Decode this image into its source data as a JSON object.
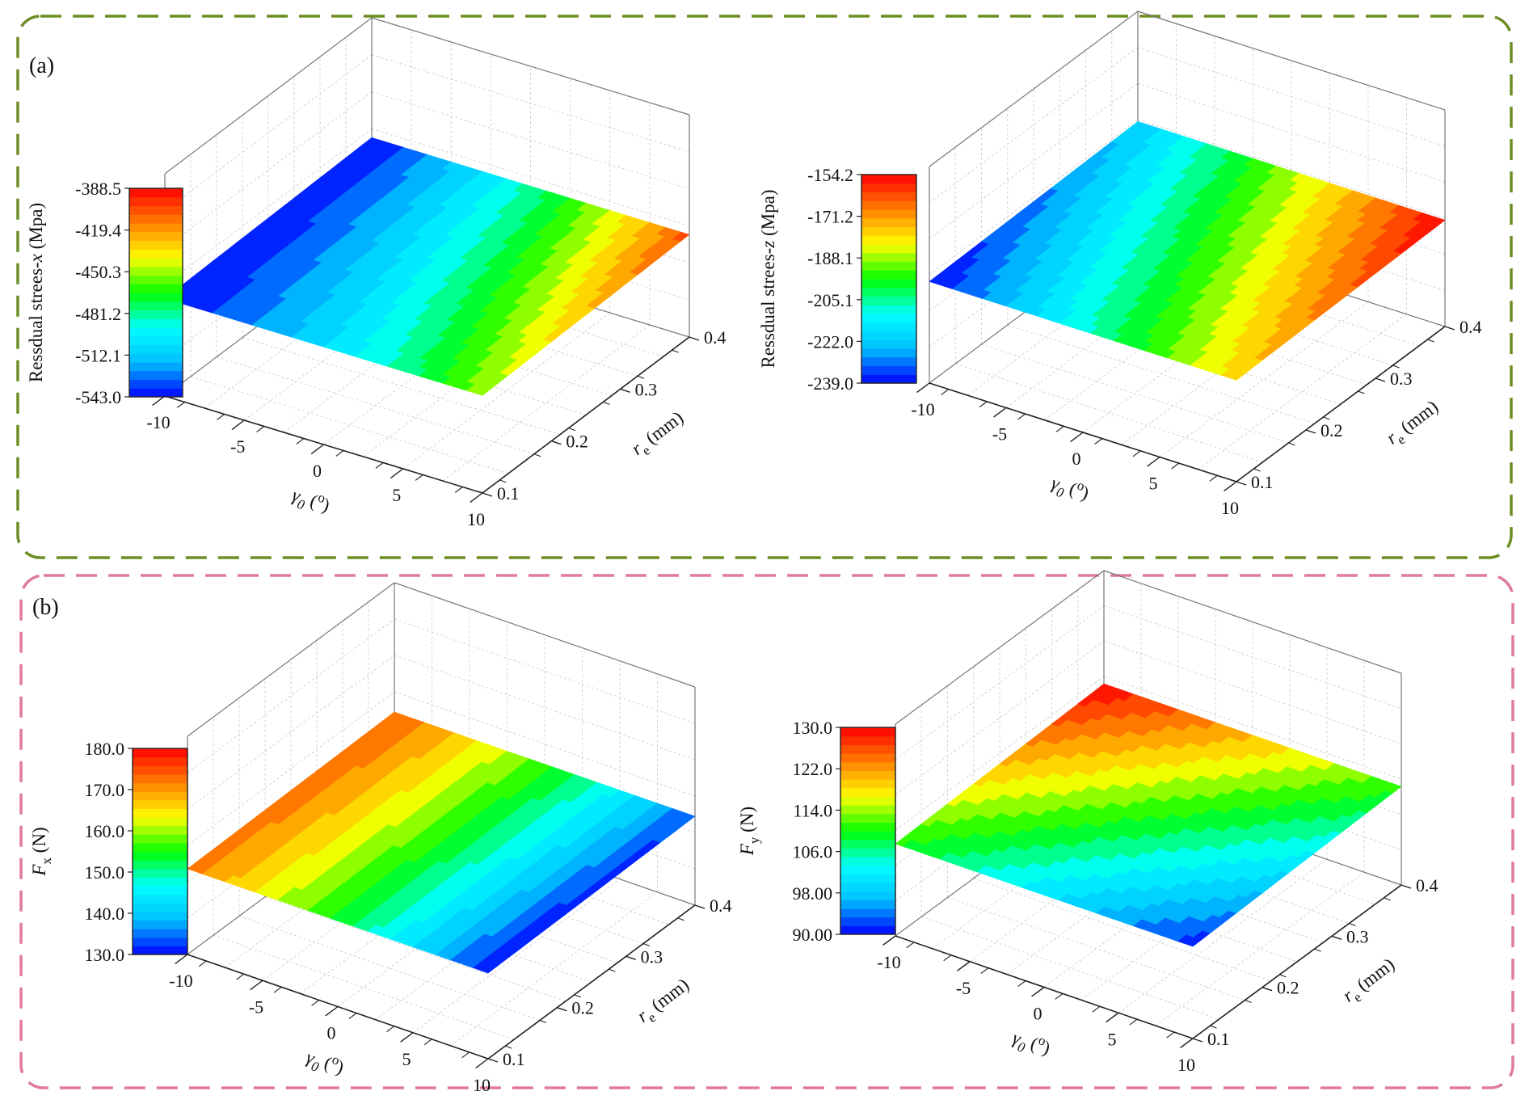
{
  "panels": [
    {
      "tag": "(a)",
      "border_color": "#6b8e23"
    },
    {
      "tag": "(b)",
      "border_color": "#e07a9f"
    }
  ],
  "colormap": [
    "#0000ff",
    "#00bfff",
    "#00ffff",
    "#00ff00",
    "#ffff00",
    "#ff8000",
    "#ff0000"
  ],
  "chart_data": [
    {
      "type": "surface",
      "panel": "(a)",
      "x": {
        "title_parts": [
          {
            "t": "γ",
            "it": true
          },
          {
            "t": "0",
            "it": true,
            "sub": true
          },
          {
            "t": " (",
            "it": false
          },
          {
            "t": "o",
            "it": false,
            "sup": true
          },
          {
            "t": ")",
            "it": false
          }
        ],
        "ticks": [
          "-10",
          "-5",
          "0",
          "5",
          "10"
        ],
        "range": [
          -10,
          10
        ]
      },
      "y": {
        "title_parts": [
          {
            "t": "r",
            "it": true
          },
          {
            "t": "e",
            "it": false,
            "sub": true
          },
          {
            "t": " (mm)",
            "it": false
          }
        ],
        "ticks": [
          "0.1",
          "0.2",
          "0.3",
          "0.4"
        ],
        "range": [
          0.1,
          0.4
        ]
      },
      "z": {
        "title_parts": [
          {
            "t": "Ressdual strees-",
            "it": false
          },
          {
            "t": "x",
            "it": true
          },
          {
            "t": " (Mpa)",
            "it": false
          }
        ],
        "colorbar_ticks": [
          "-543.0",
          "-512.1",
          "-481.2",
          "-450.3",
          "-419.4",
          "-388.5"
        ],
        "range": [
          -543.0,
          -388.5
        ]
      },
      "corner_values": {
        "gmin_rmin": -543.0,
        "gmin_rmax": -543.0,
        "gmax_rmin": -450.3,
        "gmax_rmax": -404.0
      },
      "curvature": -0.06
    },
    {
      "type": "surface",
      "panel": "(a)",
      "x": {
        "title_parts": [
          {
            "t": "γ",
            "it": true
          },
          {
            "t": "0",
            "it": true,
            "sub": true
          },
          {
            "t": " (",
            "it": false
          },
          {
            "t": "o",
            "it": false,
            "sup": true
          },
          {
            "t": ")",
            "it": false
          }
        ],
        "ticks": [
          "-10",
          "-5",
          "0",
          "5",
          "10"
        ],
        "range": [
          -10,
          10
        ]
      },
      "y": {
        "title_parts": [
          {
            "t": "r",
            "it": true
          },
          {
            "t": "e",
            "it": false,
            "sub": true
          },
          {
            "t": " (mm)",
            "it": false
          }
        ],
        "ticks": [
          "0.1",
          "0.2",
          "0.3",
          "0.4"
        ],
        "range": [
          0.1,
          0.4
        ]
      },
      "z": {
        "title_parts": [
          {
            "t": "Ressdual strees-",
            "it": false
          },
          {
            "t": "z",
            "it": true
          },
          {
            "t": " (Mpa)",
            "it": false
          }
        ],
        "colorbar_ticks": [
          "-239.0",
          "-222.0",
          "-205.1",
          "-188.1",
          "-171.2",
          "-154.2"
        ],
        "range": [
          -239.0,
          -154.2
        ]
      },
      "corner_values": {
        "gmin_rmin": -239.0,
        "gmin_rmax": -222.0,
        "gmax_rmin": -178.0,
        "gmax_rmax": -154.2
      },
      "curvature": 0.0
    },
    {
      "type": "surface",
      "panel": "(b)",
      "x": {
        "title_parts": [
          {
            "t": "γ",
            "it": true
          },
          {
            "t": "0",
            "it": true,
            "sub": true
          },
          {
            "t": " (",
            "it": false
          },
          {
            "t": "o",
            "it": false,
            "sup": true
          },
          {
            "t": ")",
            "it": false
          }
        ],
        "ticks": [
          "-10",
          "-5",
          "0",
          "5",
          "10"
        ],
        "range": [
          -10,
          10
        ]
      },
      "y": {
        "title_parts": [
          {
            "t": "r",
            "it": true
          },
          {
            "t": "e",
            "it": false,
            "sub": true
          },
          {
            "t": " (mm)",
            "it": false
          }
        ],
        "ticks": [
          "0.1",
          "0.2",
          "0.3",
          "0.4"
        ],
        "range": [
          0.1,
          0.4
        ]
      },
      "z": {
        "title_parts": [
          {
            "t": "F",
            "it": true
          },
          {
            "t": "x",
            "it": false,
            "sub": true
          },
          {
            "t": " (N)",
            "it": false
          }
        ],
        "colorbar_ticks": [
          "130.0",
          "140.0",
          "150.0",
          "160.0",
          "170.0",
          "180.0"
        ],
        "range": [
          130.0,
          180.0
        ]
      },
      "corner_values": {
        "gmin_rmin": 172.0,
        "gmin_rmax": 174.0,
        "gmax_rmin": 130.0,
        "gmax_rmax": 133.0
      },
      "curvature": 0.05
    },
    {
      "type": "surface",
      "panel": "(b)",
      "x": {
        "title_parts": [
          {
            "t": "γ",
            "it": true
          },
          {
            "t": "0",
            "it": true,
            "sub": true
          },
          {
            "t": " (",
            "it": false
          },
          {
            "t": "o",
            "it": false,
            "sup": true
          },
          {
            "t": ")",
            "it": false
          }
        ],
        "ticks": [
          "-10",
          "-5",
          "0",
          "5",
          "10"
        ],
        "range": [
          -10,
          10
        ]
      },
      "y": {
        "title_parts": [
          {
            "t": "r",
            "it": true
          },
          {
            "t": "e",
            "it": false,
            "sub": true
          },
          {
            "t": " (mm)",
            "it": false
          }
        ],
        "ticks": [
          "0.1",
          "0.2",
          "0.3",
          "0.4"
        ],
        "range": [
          0.1,
          0.4
        ]
      },
      "z": {
        "title_parts": [
          {
            "t": "F",
            "it": true
          },
          {
            "t": "y",
            "it": false,
            "sub": true
          },
          {
            "t": " (N)",
            "it": false
          }
        ],
        "colorbar_ticks": [
          "90.00",
          "98.00",
          "106.0",
          "114.0",
          "122.0",
          "130.0"
        ],
        "range": [
          90.0,
          130.0
        ]
      },
      "corner_values": {
        "gmin_rmin": 110.0,
        "gmin_rmax": 130.0,
        "gmax_rmin": 91.0,
        "gmax_rmax": 111.0
      },
      "curvature": 0.0
    }
  ]
}
